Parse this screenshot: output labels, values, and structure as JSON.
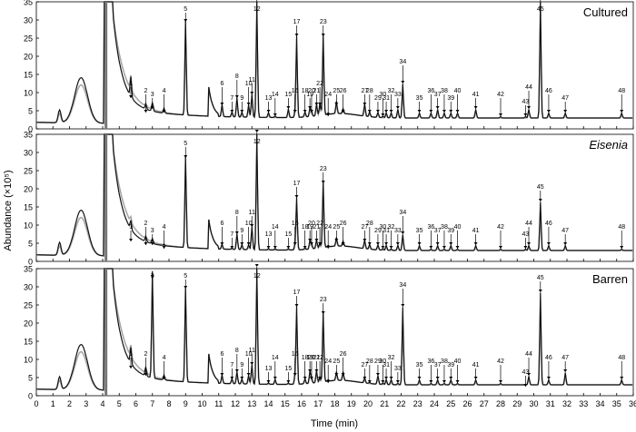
{
  "chart_data": [
    {
      "type": "line",
      "title": "Cultured",
      "title_style": "normal",
      "ylim": [
        0,
        35
      ],
      "yticks": [
        "0",
        "5",
        "10",
        "15",
        "20",
        "25",
        "30",
        "35"
      ],
      "series": [
        {
          "color": "#111111",
          "values": []
        },
        {
          "color": "#a8a8a8",
          "values": []
        }
      ],
      "peaks": [
        {
          "id": "1",
          "rt": 5.7,
          "h": 8
        },
        {
          "id": "2",
          "rt": 6.6,
          "h": 4
        },
        {
          "id": "3",
          "rt": 7.0,
          "h": 5
        },
        {
          "id": "4",
          "rt": 7.7,
          "h": 4
        },
        {
          "id": "5",
          "rt": 9.0,
          "h": 29
        },
        {
          "id": "6",
          "rt": 11.2,
          "h": 6
        },
        {
          "id": "7",
          "rt": 11.8,
          "h": 4
        },
        {
          "id": "8",
          "rt": 12.1,
          "h": 8
        },
        {
          "id": "9",
          "rt": 12.4,
          "h": 4
        },
        {
          "id": "10",
          "rt": 12.8,
          "h": 6
        },
        {
          "id": "11",
          "rt": 13.0,
          "h": 9
        },
        {
          "id": "12",
          "rt": 13.3,
          "h": 35
        },
        {
          "id": "13",
          "rt": 14.0,
          "h": 4
        },
        {
          "id": "14",
          "rt": 14.4,
          "h": 3
        },
        {
          "id": "15",
          "rt": 15.2,
          "h": 5
        },
        {
          "id": "16",
          "rt": 15.6,
          "h": 4
        },
        {
          "id": "17",
          "rt": 15.7,
          "h": 25
        },
        {
          "id": "18",
          "rt": 16.2,
          "h": 4
        },
        {
          "id": "19",
          "rt": 16.5,
          "h": 5
        },
        {
          "id": "20",
          "rt": 16.6,
          "h": 4
        },
        {
          "id": "21",
          "rt": 16.9,
          "h": 6
        },
        {
          "id": "22",
          "rt": 17.1,
          "h": 6
        },
        {
          "id": "23",
          "rt": 17.3,
          "h": 25
        },
        {
          "id": "24",
          "rt": 17.6,
          "h": 3
        },
        {
          "id": "25",
          "rt": 18.1,
          "h": 6
        },
        {
          "id": "26",
          "rt": 18.5,
          "h": 4
        },
        {
          "id": "27",
          "rt": 19.8,
          "h": 6
        },
        {
          "id": "28",
          "rt": 20.1,
          "h": 4
        },
        {
          "id": "29",
          "rt": 20.6,
          "h": 4
        },
        {
          "id": "30",
          "rt": 20.9,
          "h": 3
        },
        {
          "id": "31",
          "rt": 21.1,
          "h": 4
        },
        {
          "id": "32",
          "rt": 21.4,
          "h": 4
        },
        {
          "id": "33",
          "rt": 21.8,
          "h": 5
        },
        {
          "id": "34",
          "rt": 22.1,
          "h": 12
        },
        {
          "id": "35",
          "rt": 23.1,
          "h": 4
        },
        {
          "id": "36",
          "rt": 23.8,
          "h": 4
        },
        {
          "id": "37",
          "rt": 24.2,
          "h": 5
        },
        {
          "id": "38",
          "rt": 24.6,
          "h": 4
        },
        {
          "id": "39",
          "rt": 25.0,
          "h": 4
        },
        {
          "id": "40",
          "rt": 25.4,
          "h": 4
        },
        {
          "id": "41",
          "rt": 26.5,
          "h": 5
        },
        {
          "id": "42",
          "rt": 28.0,
          "h": 3
        },
        {
          "id": "43",
          "rt": 29.5,
          "h": 3
        },
        {
          "id": "44",
          "rt": 29.7,
          "h": 5
        },
        {
          "id": "45",
          "rt": 30.4,
          "h": 35
        },
        {
          "id": "46",
          "rt": 30.9,
          "h": 4
        },
        {
          "id": "47",
          "rt": 31.9,
          "h": 4
        },
        {
          "id": "48",
          "rt": 35.3,
          "h": 4
        }
      ]
    },
    {
      "type": "line",
      "title": "Eisenia",
      "title_style": "italic",
      "ylim": [
        0,
        35
      ],
      "yticks": [
        "0",
        "5",
        "10",
        "15",
        "20",
        "25",
        "30",
        "35"
      ],
      "series": [
        {
          "color": "#111111",
          "values": []
        },
        {
          "color": "#a8a8a8",
          "values": []
        }
      ],
      "peaks": [
        {
          "id": "1",
          "rt": 5.7,
          "h": 5
        },
        {
          "id": "2",
          "rt": 6.6,
          "h": 4
        },
        {
          "id": "3",
          "rt": 7.0,
          "h": 4
        },
        {
          "id": "4",
          "rt": 7.7,
          "h": 3
        },
        {
          "id": "5",
          "rt": 9.0,
          "h": 28
        },
        {
          "id": "6",
          "rt": 11.2,
          "h": 4
        },
        {
          "id": "7",
          "rt": 11.8,
          "h": 3
        },
        {
          "id": "8",
          "rt": 12.1,
          "h": 7
        },
        {
          "id": "9",
          "rt": 12.4,
          "h": 4
        },
        {
          "id": "10",
          "rt": 12.8,
          "h": 4
        },
        {
          "id": "11",
          "rt": 13.0,
          "h": 9
        },
        {
          "id": "12",
          "rt": 13.3,
          "h": 35
        },
        {
          "id": "13",
          "rt": 14.0,
          "h": 3
        },
        {
          "id": "14",
          "rt": 14.4,
          "h": 3
        },
        {
          "id": "15",
          "rt": 15.2,
          "h": 3
        },
        {
          "id": "16",
          "rt": 15.6,
          "h": 4
        },
        {
          "id": "17",
          "rt": 15.7,
          "h": 17
        },
        {
          "id": "18",
          "rt": 16.2,
          "h": 3
        },
        {
          "id": "19",
          "rt": 16.5,
          "h": 5
        },
        {
          "id": "20",
          "rt": 16.6,
          "h": 4
        },
        {
          "id": "21",
          "rt": 16.9,
          "h": 5
        },
        {
          "id": "22",
          "rt": 17.1,
          "h": 4
        },
        {
          "id": "23",
          "rt": 17.3,
          "h": 21
        },
        {
          "id": "24",
          "rt": 17.6,
          "h": 3
        },
        {
          "id": "25",
          "rt": 18.1,
          "h": 5
        },
        {
          "id": "26",
          "rt": 18.5,
          "h": 4
        },
        {
          "id": "27",
          "rt": 19.8,
          "h": 5
        },
        {
          "id": "28",
          "rt": 20.1,
          "h": 4
        },
        {
          "id": "29",
          "rt": 20.6,
          "h": 4
        },
        {
          "id": "30",
          "rt": 20.9,
          "h": 3
        },
        {
          "id": "31",
          "rt": 21.1,
          "h": 4
        },
        {
          "id": "32",
          "rt": 21.4,
          "h": 3
        },
        {
          "id": "33",
          "rt": 21.8,
          "h": 4
        },
        {
          "id": "34",
          "rt": 22.1,
          "h": 7
        },
        {
          "id": "35",
          "rt": 23.1,
          "h": 4
        },
        {
          "id": "36",
          "rt": 23.8,
          "h": 3
        },
        {
          "id": "37",
          "rt": 24.2,
          "h": 4
        },
        {
          "id": "38",
          "rt": 24.6,
          "h": 3
        },
        {
          "id": "39",
          "rt": 25.0,
          "h": 4
        },
        {
          "id": "40",
          "rt": 25.4,
          "h": 3
        },
        {
          "id": "41",
          "rt": 26.5,
          "h": 4
        },
        {
          "id": "42",
          "rt": 28.0,
          "h": 3
        },
        {
          "id": "43",
          "rt": 29.5,
          "h": 3
        },
        {
          "id": "44",
          "rt": 29.7,
          "h": 4
        },
        {
          "id": "45",
          "rt": 30.4,
          "h": 16
        },
        {
          "id": "46",
          "rt": 30.9,
          "h": 4
        },
        {
          "id": "47",
          "rt": 31.9,
          "h": 4
        },
        {
          "id": "48",
          "rt": 35.3,
          "h": 3
        }
      ]
    },
    {
      "type": "line",
      "title": "Barren",
      "title_style": "normal",
      "xlabel": "Time (min)",
      "xticks": [
        "0",
        "1",
        "2",
        "3",
        "4",
        "5",
        "6",
        "7",
        "8",
        "9",
        "10",
        "11",
        "12",
        "13",
        "14",
        "15",
        "16",
        "17",
        "18",
        "19",
        "20",
        "21",
        "22",
        "23",
        "24",
        "25",
        "26",
        "27",
        "28",
        "29",
        "30",
        "31",
        "32",
        "33",
        "34",
        "35",
        "36"
      ],
      "xlim": [
        0,
        36
      ],
      "ylim": [
        0,
        35
      ],
      "yticks": [
        "0",
        "5",
        "10",
        "15",
        "20",
        "25",
        "30",
        "35"
      ],
      "series": [
        {
          "color": "#111111",
          "values": []
        },
        {
          "color": "#a8a8a8",
          "values": []
        }
      ],
      "peaks": [
        {
          "id": "1",
          "rt": 5.7,
          "h": 7
        },
        {
          "id": "2",
          "rt": 6.6,
          "h": 5
        },
        {
          "id": "3",
          "rt": 7.0,
          "h": 32
        },
        {
          "id": "4",
          "rt": 7.7,
          "h": 4
        },
        {
          "id": "5",
          "rt": 9.0,
          "h": 29
        },
        {
          "id": "6",
          "rt": 11.2,
          "h": 5
        },
        {
          "id": "7",
          "rt": 11.8,
          "h": 4
        },
        {
          "id": "8",
          "rt": 12.1,
          "h": 6
        },
        {
          "id": "9",
          "rt": 12.4,
          "h": 4
        },
        {
          "id": "10",
          "rt": 12.8,
          "h": 5
        },
        {
          "id": "11",
          "rt": 13.0,
          "h": 8
        },
        {
          "id": "12",
          "rt": 13.3,
          "h": 35
        },
        {
          "id": "13",
          "rt": 14.0,
          "h": 3
        },
        {
          "id": "14",
          "rt": 14.4,
          "h": 4
        },
        {
          "id": "15",
          "rt": 15.2,
          "h": 3
        },
        {
          "id": "16",
          "rt": 15.6,
          "h": 5
        },
        {
          "id": "17",
          "rt": 15.7,
          "h": 24
        },
        {
          "id": "18",
          "rt": 16.2,
          "h": 4
        },
        {
          "id": "19",
          "rt": 16.5,
          "h": 6
        },
        {
          "id": "20",
          "rt": 16.6,
          "h": 4
        },
        {
          "id": "21",
          "rt": 16.9,
          "h": 6
        },
        {
          "id": "22",
          "rt": 17.1,
          "h": 4
        },
        {
          "id": "23",
          "rt": 17.3,
          "h": 22
        },
        {
          "id": "24",
          "rt": 17.6,
          "h": 3
        },
        {
          "id": "25",
          "rt": 18.1,
          "h": 5
        },
        {
          "id": "26",
          "rt": 18.5,
          "h": 5
        },
        {
          "id": "27",
          "rt": 19.8,
          "h": 4
        },
        {
          "id": "28",
          "rt": 20.1,
          "h": 3
        },
        {
          "id": "29",
          "rt": 20.6,
          "h": 5
        },
        {
          "id": "30",
          "rt": 20.9,
          "h": 3
        },
        {
          "id": "31",
          "rt": 21.1,
          "h": 4
        },
        {
          "id": "32",
          "rt": 21.4,
          "h": 4
        },
        {
          "id": "33",
          "rt": 21.8,
          "h": 3
        },
        {
          "id": "34",
          "rt": 22.1,
          "h": 24
        },
        {
          "id": "35",
          "rt": 23.1,
          "h": 4
        },
        {
          "id": "36",
          "rt": 23.8,
          "h": 3
        },
        {
          "id": "37",
          "rt": 24.2,
          "h": 4
        },
        {
          "id": "38",
          "rt": 24.6,
          "h": 3
        },
        {
          "id": "39",
          "rt": 25.0,
          "h": 4
        },
        {
          "id": "40",
          "rt": 25.4,
          "h": 3
        },
        {
          "id": "41",
          "rt": 26.5,
          "h": 4
        },
        {
          "id": "42",
          "rt": 28.0,
          "h": 3
        },
        {
          "id": "43",
          "rt": 29.5,
          "h": 2
        },
        {
          "id": "44",
          "rt": 29.7,
          "h": 5
        },
        {
          "id": "45",
          "rt": 30.4,
          "h": 28
        },
        {
          "id": "46",
          "rt": 30.9,
          "h": 4
        },
        {
          "id": "47",
          "rt": 31.9,
          "h": 6
        },
        {
          "id": "48",
          "rt": 35.3,
          "h": 4
        }
      ]
    }
  ],
  "figure": {
    "ylabel": "Abundance (×10⁵)",
    "xlabel": "Time (min)"
  }
}
